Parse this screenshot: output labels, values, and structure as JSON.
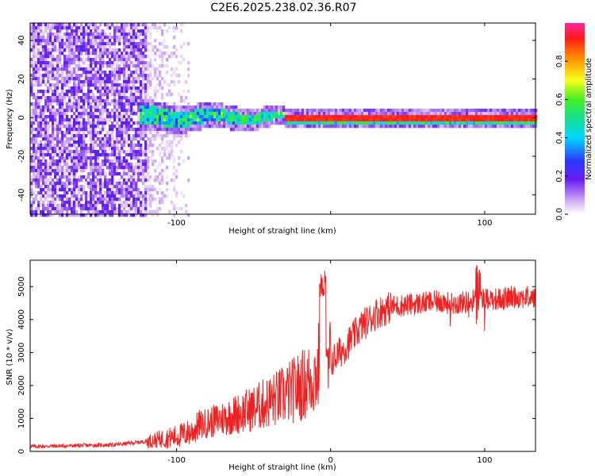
{
  "title": "C2E6.2025.238.02.36.R07",
  "chart_data": [
    {
      "type": "heatmap",
      "xlabel": "Height of straight line (km)",
      "ylabel": "Frequency (Hz)",
      "xlim": [
        -195,
        133
      ],
      "ylim": [
        -50,
        49
      ],
      "xticks": [
        -100,
        0,
        100
      ],
      "xtick_labels": [
        "-100",
        "",
        "100"
      ],
      "yticks": [
        -40,
        -20,
        0,
        20,
        40
      ],
      "ytick_labels": [
        "-40",
        "-20",
        "0",
        "20",
        "40"
      ],
      "colorbar": {
        "label": "Normalized spectral amplitude",
        "range": [
          0.0,
          1.0
        ],
        "ticks": [
          0.0,
          0.2,
          0.4,
          0.6,
          0.8
        ],
        "tick_labels": [
          "0.0",
          "0.2",
          "0.4",
          "0.6",
          "0.8"
        ],
        "colors": [
          "#f2ddf8",
          "#7e2df0",
          "#2a3bff",
          "#00d8ff",
          "#2ee85a",
          "#f7ff1a",
          "#ff8a00",
          "#ff1a1a",
          "#ff2aa0"
        ]
      },
      "regions": [
        {
          "name": "scattered noise",
          "x": [
            -195,
            -120
          ],
          "y": [
            -50,
            49
          ],
          "amplitude": 0.15
        },
        {
          "name": "fading noise",
          "x": [
            -120,
            -92
          ],
          "y": [
            -50,
            49
          ],
          "amplitude": 0.05
        },
        {
          "name": "broad signal band",
          "x": [
            -120,
            -30
          ],
          "y": [
            -5,
            7
          ],
          "amplitude": 0.4
        },
        {
          "name": "narrow signal line",
          "x": [
            -30,
            133
          ],
          "y": [
            -1,
            1
          ],
          "amplitude": 0.9
        }
      ]
    },
    {
      "type": "line",
      "xlabel": "Height of straight line (km)",
      "ylabel": "SNR (10 * v/v)",
      "xlim": [
        -195,
        133
      ],
      "ylim": [
        0,
        5800
      ],
      "xticks": [
        -100,
        0,
        100
      ],
      "xtick_labels": [
        "-100",
        "0",
        "100"
      ],
      "yticks": [
        0,
        1000,
        2000,
        3000,
        4000,
        5000
      ],
      "ytick_labels": [
        "0",
        "1000",
        "2000",
        "3000",
        "4000",
        "5000"
      ],
      "color": "#ee2222",
      "series": [
        {
          "name": "SNR",
          "x": [
            -195,
            -170,
            -140,
            -120,
            -100,
            -90,
            -85,
            -70,
            -50,
            -30,
            -15,
            -8,
            -5,
            -4,
            -2,
            0,
            10,
            20,
            30,
            40,
            50,
            60,
            70,
            80,
            90,
            100,
            110,
            120,
            133
          ],
          "y": [
            150,
            170,
            200,
            300,
            450,
            600,
            800,
            1000,
            1300,
            1700,
            2100,
            2400,
            5600,
            1800,
            2300,
            2700,
            3200,
            3800,
            4200,
            4400,
            4450,
            4500,
            4550,
            4480,
            4550,
            4650,
            4620,
            4700,
            4650
          ]
        }
      ]
    }
  ]
}
